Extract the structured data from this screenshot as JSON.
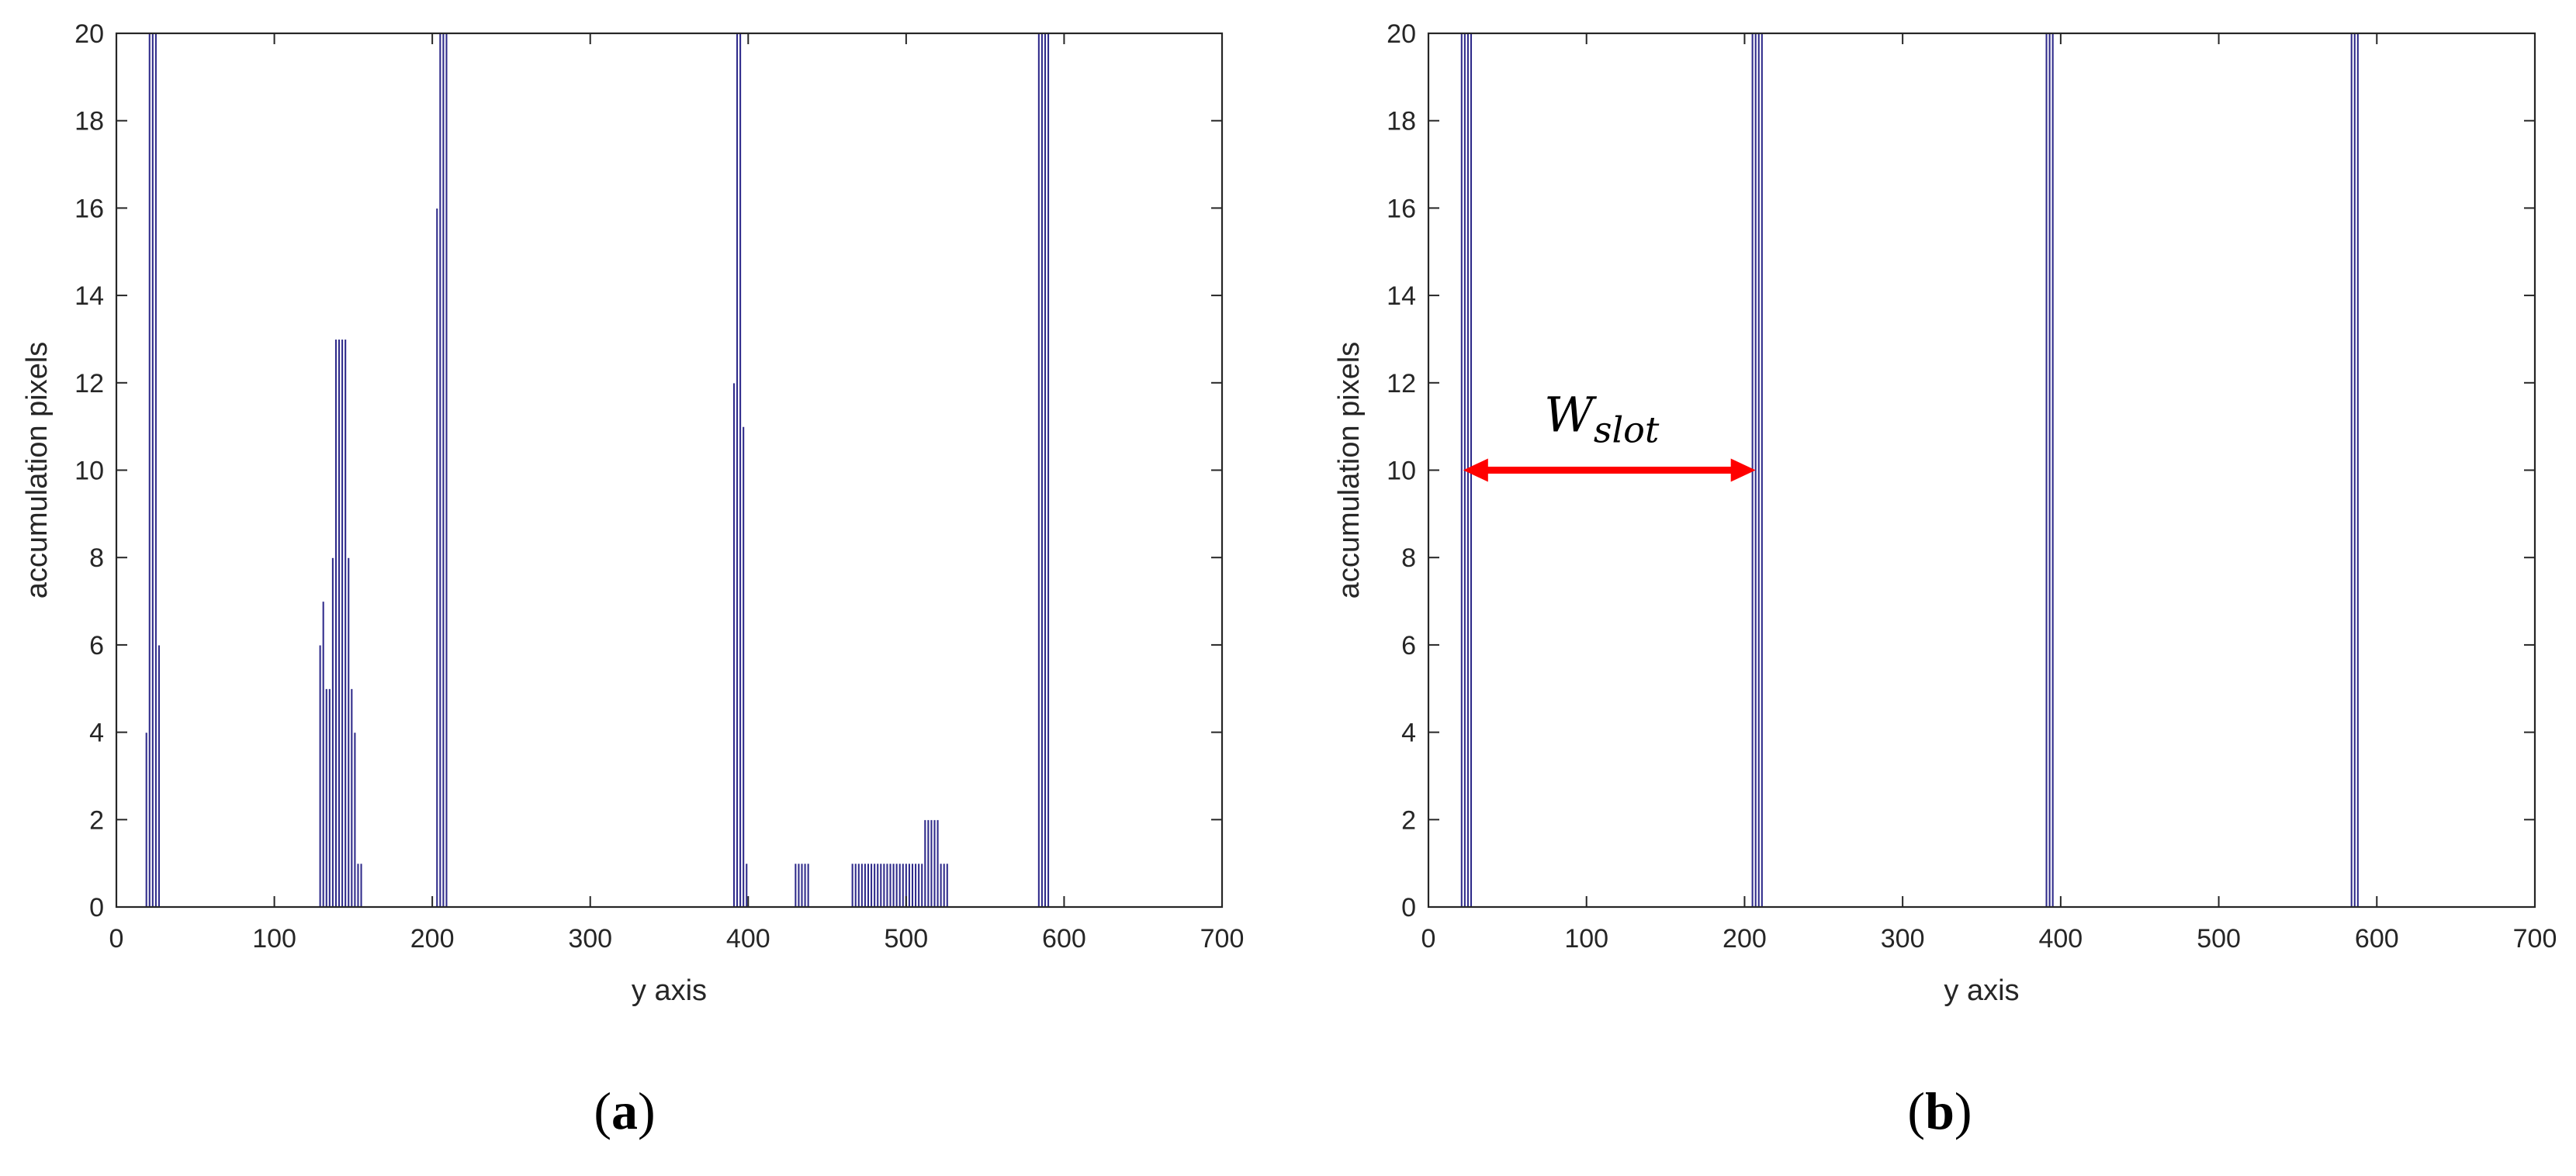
{
  "figure": {
    "panel_a_caption": "(a)",
    "panel_b_caption": "(b)",
    "caption_letter_a": "a",
    "caption_letter_b": "b"
  },
  "annotation": {
    "main": "W",
    "subscript": "slot",
    "arrow_color": "#ff0000",
    "arrow_x_start": 22,
    "arrow_x_end": 207,
    "arrow_y": 10
  },
  "chart_data": [
    {
      "type": "bar",
      "panel": "a",
      "title": "",
      "xlabel": "y axis",
      "ylabel": "accumulation pixels",
      "xlim": [
        0,
        700
      ],
      "ylim": [
        0,
        20
      ],
      "xticks": [
        0,
        100,
        200,
        300,
        400,
        500,
        600,
        700
      ],
      "yticks": [
        0,
        2,
        4,
        6,
        8,
        10,
        12,
        14,
        16,
        18,
        20
      ],
      "grid": false,
      "bar_color": "#2e2a8a",
      "bar_width": 1.6,
      "x": [
        19,
        21,
        23,
        25,
        27,
        129,
        131,
        133,
        135,
        137,
        139,
        141,
        143,
        145,
        147,
        149,
        151,
        153,
        155,
        203,
        205,
        207,
        209,
        391,
        393,
        395,
        397,
        399,
        430,
        432,
        434,
        436,
        438,
        466,
        468,
        470,
        472,
        474,
        476,
        478,
        480,
        482,
        484,
        486,
        488,
        490,
        492,
        494,
        496,
        498,
        500,
        502,
        504,
        506,
        508,
        510,
        512,
        514,
        516,
        518,
        520,
        522,
        524,
        526,
        584,
        586,
        588,
        590
      ],
      "values": [
        4,
        20,
        20,
        20,
        6,
        6,
        7,
        5,
        5,
        8,
        13,
        13,
        13,
        13,
        8,
        5,
        4,
        1,
        1,
        16,
        20,
        20,
        20,
        12,
        20,
        20,
        11,
        1,
        1,
        1,
        1,
        1,
        1,
        1,
        1,
        1,
        1,
        1,
        1,
        1,
        1,
        1,
        1,
        1,
        1,
        1,
        1,
        1,
        1,
        1,
        1,
        1,
        1,
        1,
        1,
        1,
        2,
        2,
        2,
        2,
        2,
        1,
        1,
        1,
        20,
        20,
        20,
        20
      ]
    },
    {
      "type": "bar",
      "panel": "b",
      "title": "",
      "xlabel": "y axis",
      "ylabel": "accumulation pixels",
      "xlim": [
        0,
        700
      ],
      "ylim": [
        0,
        20
      ],
      "xticks": [
        0,
        100,
        200,
        300,
        400,
        500,
        600,
        700
      ],
      "yticks": [
        0,
        2,
        4,
        6,
        8,
        10,
        12,
        14,
        16,
        18,
        20
      ],
      "grid": false,
      "bar_color": "#2e2a8a",
      "bar_width": 1.6,
      "x": [
        21,
        23,
        25,
        27,
        205,
        207,
        209,
        211,
        391,
        393,
        395,
        584,
        586,
        588
      ],
      "values": [
        20,
        20,
        20,
        20,
        20,
        20,
        20,
        20,
        20,
        20,
        20,
        20,
        20,
        20
      ]
    }
  ]
}
